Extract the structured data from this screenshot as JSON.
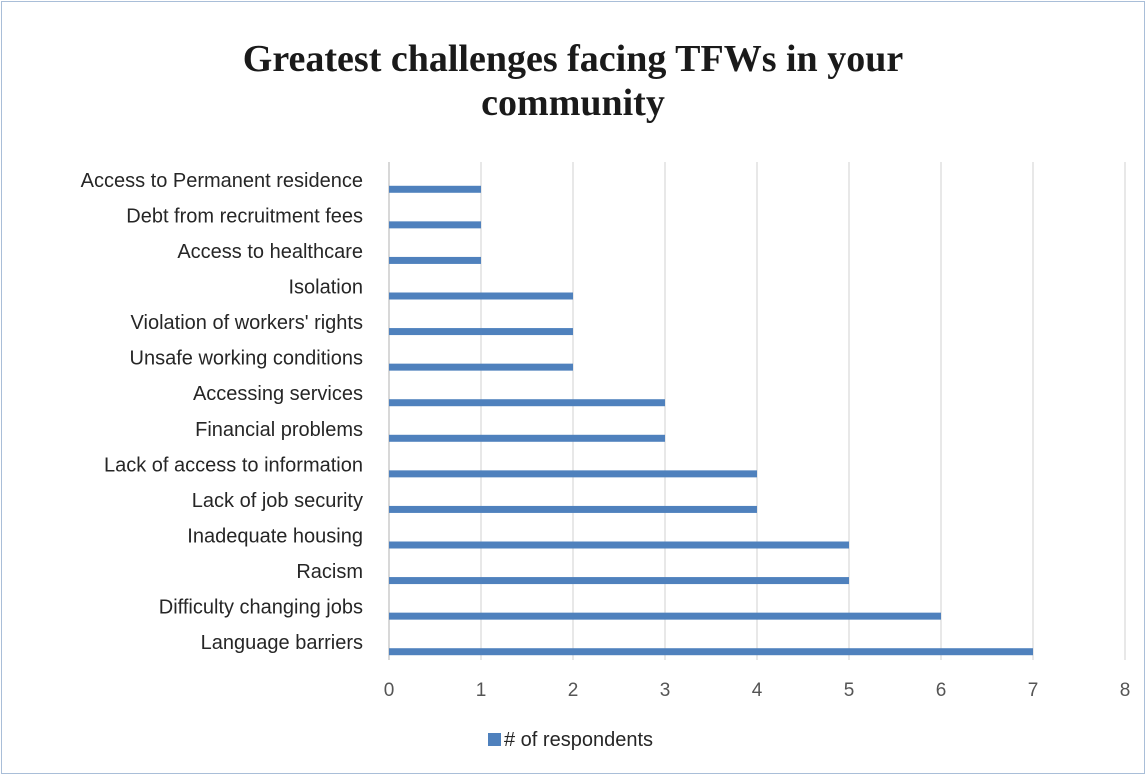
{
  "chart_data": {
    "type": "bar",
    "orientation": "horizontal",
    "title": "Greatest challenges facing TFWs in your community",
    "title_lines": [
      "Greatest challenges facing TFWs in your",
      "community"
    ],
    "categories": [
      "Language barriers",
      "Difficulty changing jobs",
      "Racism",
      "Inadequate housing",
      "Lack of job security",
      "Lack of access to information",
      "Financial problems",
      "Accessing services",
      "Unsafe working conditions",
      "Violation of workers' rights",
      "Isolation",
      "Access to healthcare",
      "Debt from recruitment fees",
      "Access to Permanent residence"
    ],
    "series": [
      {
        "name": "# of respondents",
        "values": [
          7,
          6,
          5,
          5,
          4,
          4,
          3,
          3,
          2,
          2,
          2,
          1,
          1,
          1
        ]
      }
    ],
    "xlim": [
      0,
      8
    ],
    "x_ticks": [
      "0",
      "1",
      "2",
      "3",
      "4",
      "5",
      "6",
      "7",
      "8"
    ],
    "grid": true,
    "legend_position": "bottom",
    "bar_color": "#4f81bd",
    "grid_color": "#d9d9d9"
  }
}
